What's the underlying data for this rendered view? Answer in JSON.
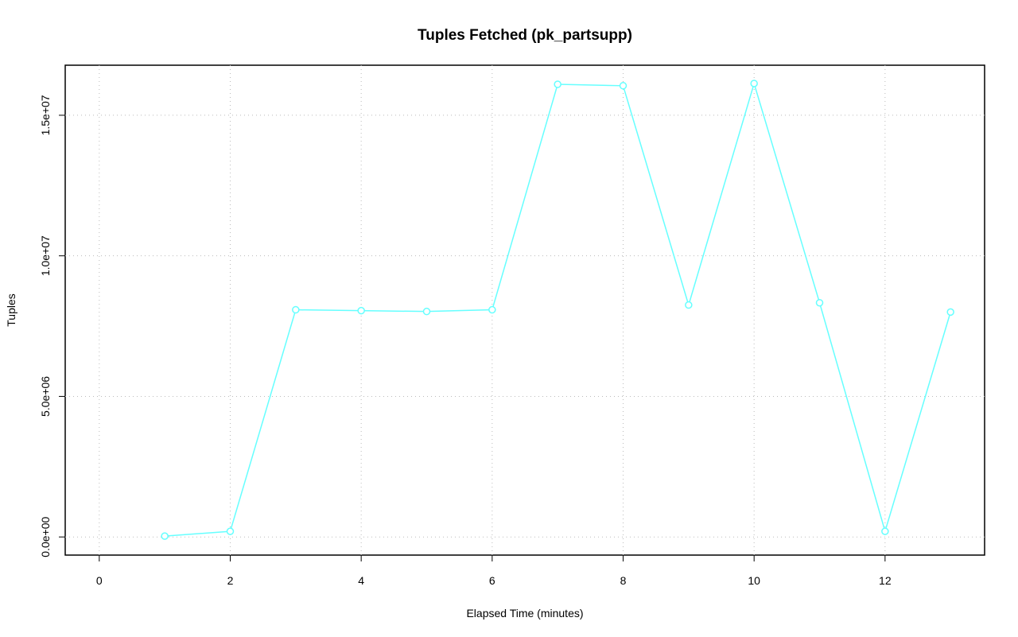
{
  "chart_data": {
    "type": "line",
    "title": "Tuples Fetched (pk_partsupp)",
    "x_label": "Elapsed Time (minutes)",
    "y_label": "Tuples",
    "x": [
      1,
      2,
      3,
      4,
      5,
      6,
      7,
      8,
      9,
      10,
      11,
      12,
      13
    ],
    "series": [
      {
        "color": "#66ffff",
        "values": [
          30000,
          200000,
          8080000,
          8050000,
          8020000,
          8080000,
          16100000,
          16050000,
          8250000,
          16130000,
          8330000,
          200000,
          8000000
        ]
      }
    ],
    "xlim": [
      -0.52,
      13.52
    ],
    "xticks": [
      0,
      2,
      4,
      6,
      8,
      10,
      12
    ],
    "ylim": [
      -645000,
      16780000
    ],
    "yticks": [
      {
        "value": 0,
        "label": "0.0e+00"
      },
      {
        "value": 5000000,
        "label": "5.0e+06"
      },
      {
        "value": 10000000,
        "label": "1.0e+07"
      },
      {
        "value": 15000000,
        "label": "1.5e+07"
      }
    ],
    "grid": true
  }
}
